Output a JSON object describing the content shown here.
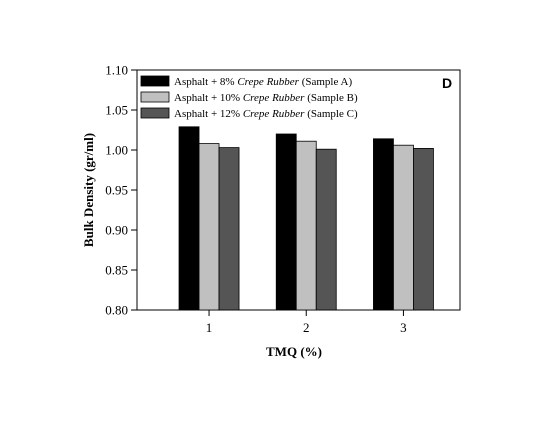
{
  "chart_data": {
    "type": "bar",
    "panel_label": "D",
    "xlabel": "TMQ (%)",
    "ylabel": "Bulk Density (gr/ml)",
    "categories": [
      "1",
      "2",
      "3"
    ],
    "ylim": [
      0.8,
      1.1
    ],
    "yticks": [
      "0.80",
      "0.85",
      "0.90",
      "0.95",
      "1.00",
      "1.05",
      "1.10"
    ],
    "grid": false,
    "legend_position": "top-left",
    "series": [
      {
        "name": "Asphalt + 8% Crepe Rubber (Sample A)",
        "legend": {
          "prefix": "Asphalt + 8% ",
          "italic": "Crepe Rubber",
          "suffix": " (Sample A)"
        },
        "color": "#000000",
        "values": [
          1.029,
          1.02,
          1.014
        ]
      },
      {
        "name": "Asphalt + 10% Crepe Rubber (Sample B)",
        "legend": {
          "prefix": "Asphalt  + 10% ",
          "italic": "Crepe Rubber",
          "suffix": " (Sample B)"
        },
        "color": "#c0c0c0",
        "values": [
          1.008,
          1.011,
          1.006
        ]
      },
      {
        "name": "Asphalt + 12% Crepe Rubber (Sample C)",
        "legend": {
          "prefix": "Asphalt + 12% ",
          "italic": "Crepe Rubber",
          "suffix": " (Sample C)"
        },
        "color": "#555555",
        "values": [
          1.003,
          1.001,
          1.002
        ]
      }
    ]
  }
}
